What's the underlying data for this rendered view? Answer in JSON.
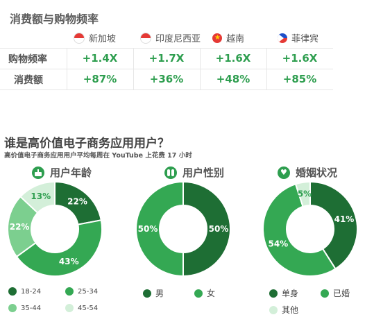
{
  "section1": {
    "title": "消费额与购物频率",
    "countries": [
      {
        "name": "新加坡",
        "flag": "singapore-flag-icon"
      },
      {
        "name": "印度尼西亚",
        "flag": "indonesia-flag-icon"
      },
      {
        "name": "越南",
        "flag": "vietnam-flag-icon"
      },
      {
        "name": "菲律宾",
        "flag": "philippines-flag-icon"
      }
    ],
    "rows": [
      {
        "label": "购物频率",
        "values": [
          "+1.4X",
          "+1.7X",
          "+1.6X",
          "+1.6X"
        ]
      },
      {
        "label": "消费额",
        "values": [
          "+87%",
          "+36%",
          "+48%",
          "+85%"
        ]
      }
    ]
  },
  "section2": {
    "title": "谁是高价值电子商务应用用户？",
    "subtitle": "高价值电子商务应用用户平均每周在 YouTube 上花费 17 小时"
  },
  "colors": {
    "dark": "#1e6e34",
    "mid": "#34a853",
    "light": "#7ccf8f",
    "pale": "#d3efd9"
  },
  "chart_data": [
    {
      "type": "pie",
      "title": "用户年龄",
      "icon": "birthday-cake-icon",
      "categories": [
        "18-24",
        "25-34",
        "35-44",
        "45-54"
      ],
      "values": [
        22,
        43,
        22,
        13
      ],
      "labels": [
        "22%",
        "43%",
        "22%",
        "13%"
      ],
      "colors": [
        "#1e6e34",
        "#34a853",
        "#7ccf8f",
        "#d3efd9"
      ]
    },
    {
      "type": "pie",
      "title": "用户性别",
      "icon": "people-icon",
      "categories": [
        "男",
        "女"
      ],
      "values": [
        50,
        50
      ],
      "labels": [
        "50%",
        "50%"
      ],
      "colors": [
        "#1e6e34",
        "#34a853"
      ]
    },
    {
      "type": "pie",
      "title": "婚姻状况",
      "icon": "heart-ring-icon",
      "categories": [
        "单身",
        "已婚",
        "其他"
      ],
      "values": [
        41,
        54,
        5
      ],
      "labels": [
        "41%",
        "54%",
        "5%"
      ],
      "colors": [
        "#1e6e34",
        "#34a853",
        "#d3efd9"
      ]
    }
  ]
}
